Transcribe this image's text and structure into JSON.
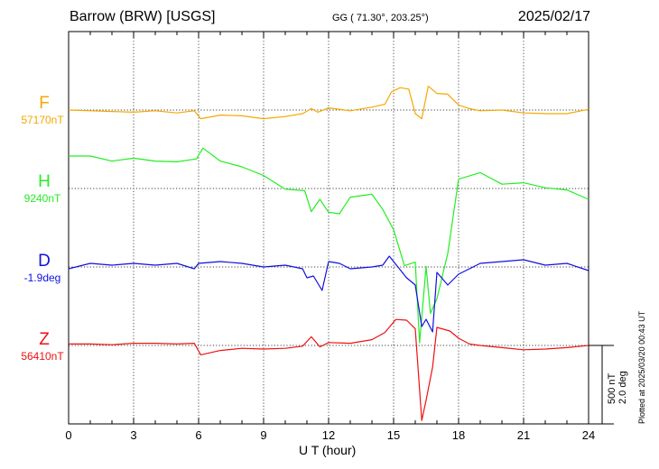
{
  "header": {
    "station": "Barrow (BRW)  [USGS]",
    "coords": "GG ( 71.30°, 203.25°)",
    "date": "2025/02/17"
  },
  "side_note": "Plotted at 2025/03/20 00:43 UT",
  "scale_bar": {
    "line1": "500 nT",
    "line2": "2.0 deg"
  },
  "colors": {
    "F": "#f5a800",
    "H": "#22ee22",
    "D": "#1010e0",
    "Z": "#ee1111"
  },
  "chart_data": {
    "type": "line",
    "xlabel": "U T (hour)",
    "xlim": [
      0,
      24
    ],
    "x_ticks": [
      "0",
      "3",
      "6",
      "9",
      "12",
      "15",
      "18",
      "21",
      "24"
    ],
    "grid": true,
    "series": [
      {
        "name": "F",
        "baseline_label": "57170nT",
        "x": [
          0,
          1,
          2,
          3,
          4,
          5,
          5.8,
          6.1,
          7,
          8,
          9,
          10,
          10.8,
          11.2,
          11.5,
          12,
          13,
          14,
          14.6,
          14.9,
          15.3,
          15.7,
          16,
          16.3,
          16.6,
          17,
          17.5,
          18,
          18.5,
          19,
          20,
          21,
          22,
          23,
          24
        ],
        "y": [
          0,
          -10,
          -20,
          -30,
          -10,
          -40,
          -10,
          -120,
          -70,
          -80,
          -120,
          -90,
          -50,
          20,
          -30,
          30,
          -10,
          40,
          80,
          250,
          310,
          290,
          -50,
          -120,
          330,
          230,
          220,
          70,
          20,
          -10,
          0,
          -40,
          -50,
          -50,
          10
        ]
      },
      {
        "name": "H",
        "baseline_label": "9240nT",
        "x": [
          0,
          1,
          2,
          3,
          4,
          5,
          5.9,
          6.2,
          7,
          8,
          9,
          10,
          10.9,
          11.2,
          11.6,
          12,
          12.5,
          13,
          14,
          14.5,
          15,
          15.5,
          16,
          16.2,
          16.5,
          16.7,
          17,
          17.5,
          18,
          19,
          20,
          21,
          22,
          23,
          24
        ],
        "y": [
          450,
          450,
          380,
          420,
          380,
          370,
          410,
          560,
          380,
          300,
          180,
          -10,
          -30,
          -320,
          -150,
          -330,
          -350,
          -120,
          -80,
          -290,
          -570,
          -1070,
          -1020,
          -2140,
          -1080,
          -1730,
          -1530,
          -900,
          130,
          220,
          60,
          80,
          10,
          -20,
          -150
        ]
      },
      {
        "name": "D",
        "baseline_label": "-1.9deg",
        "x": [
          0,
          1,
          2,
          3,
          4,
          5,
          5.8,
          6,
          7,
          8,
          9,
          10,
          10.8,
          11,
          11.3,
          11.7,
          12,
          12.5,
          13,
          14,
          14.5,
          14.8,
          15.2,
          15.6,
          16,
          16.3,
          16.5,
          16.8,
          17,
          17.5,
          18,
          19,
          20,
          21,
          22,
          23,
          24
        ],
        "y": [
          -0.1,
          0.2,
          0.1,
          0.2,
          0.1,
          0.2,
          -0.1,
          0.2,
          0.3,
          0.2,
          0.0,
          0.1,
          -0.1,
          -0.6,
          -0.5,
          -1.3,
          0.3,
          0.2,
          -0.1,
          0.0,
          0.1,
          0.6,
          0.0,
          -0.6,
          -1.0,
          -3.3,
          -2.9,
          -3.6,
          -0.3,
          -1.0,
          -0.4,
          0.2,
          0.3,
          0.4,
          0.1,
          0.2,
          -0.2
        ]
      },
      {
        "name": "Z",
        "baseline_label": "56410nT",
        "x": [
          0,
          1,
          2,
          3,
          4,
          5,
          5.8,
          6.1,
          7,
          8,
          9,
          10,
          10.8,
          11.2,
          11.6,
          12,
          13,
          14,
          14.6,
          15.1,
          15.6,
          16,
          16.3,
          16.5,
          16.8,
          17,
          17.6,
          18,
          18.5,
          19,
          20,
          21,
          22,
          23,
          24
        ],
        "y": [
          20,
          20,
          10,
          30,
          30,
          20,
          30,
          -130,
          -70,
          -40,
          -50,
          -40,
          -10,
          120,
          -20,
          40,
          30,
          80,
          180,
          360,
          350,
          230,
          -1040,
          -760,
          -300,
          250,
          200,
          100,
          20,
          0,
          -30,
          -60,
          -50,
          -30,
          0
        ]
      }
    ]
  }
}
